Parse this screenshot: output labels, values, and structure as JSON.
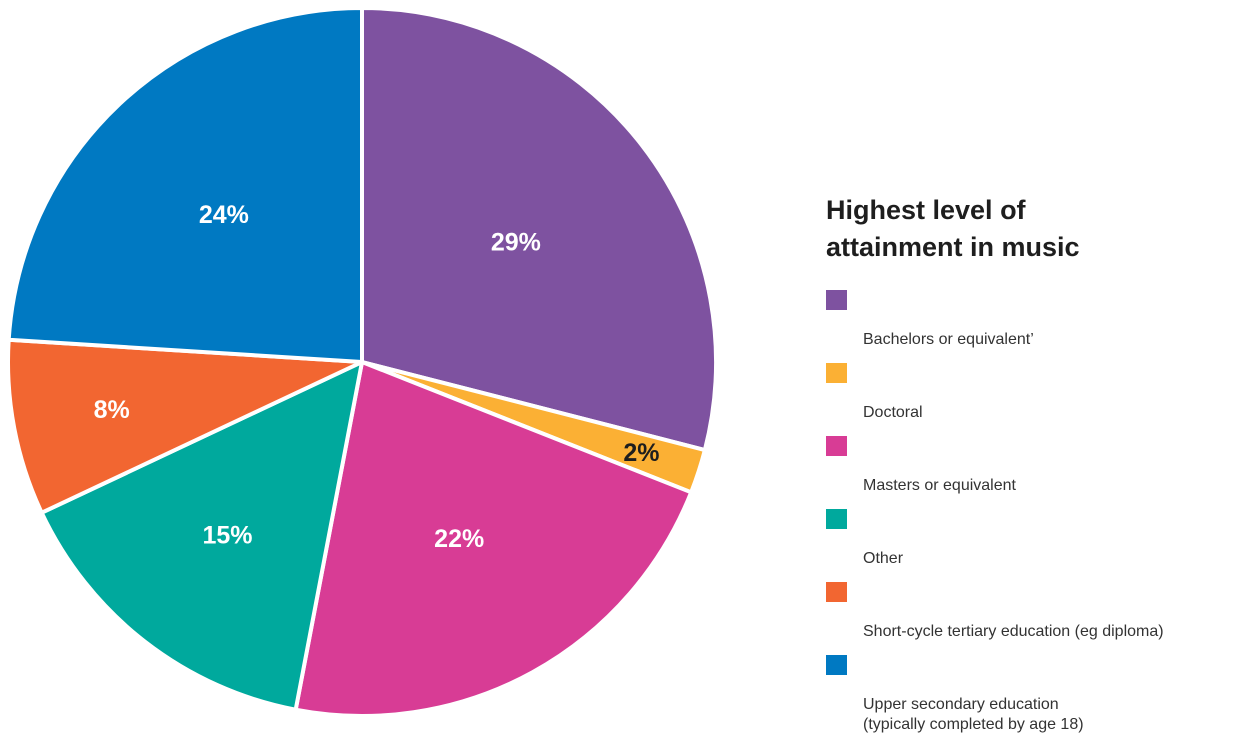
{
  "chart_data": {
    "type": "pie",
    "title": "Highest level of attainment in music",
    "legend_position": "right",
    "slices": [
      {
        "name": "Bachelors or equivalent’",
        "value": 29,
        "label": "29%",
        "color": "#7E52A0",
        "label_color": "#ffffff"
      },
      {
        "name": "Doctoral",
        "value": 2,
        "label": "2%",
        "color": "#FBB034",
        "label_color": "#1e1e1e"
      },
      {
        "name": "Masters or equivalent",
        "value": 22,
        "label": "22%",
        "color": "#D83C95",
        "label_color": "#ffffff"
      },
      {
        "name": "Other",
        "value": 15,
        "label": "15%",
        "color": "#00A99D",
        "label_color": "#ffffff"
      },
      {
        "name": "Short-cycle tertiary education (eg diploma)",
        "value": 8,
        "label": "8%",
        "color": "#F26631",
        "label_color": "#ffffff"
      },
      {
        "name": "Upper secondary education\n(typically completed by age 18)",
        "value": 24,
        "label": "24%",
        "color": "#0079C2",
        "label_color": "#ffffff"
      }
    ]
  }
}
